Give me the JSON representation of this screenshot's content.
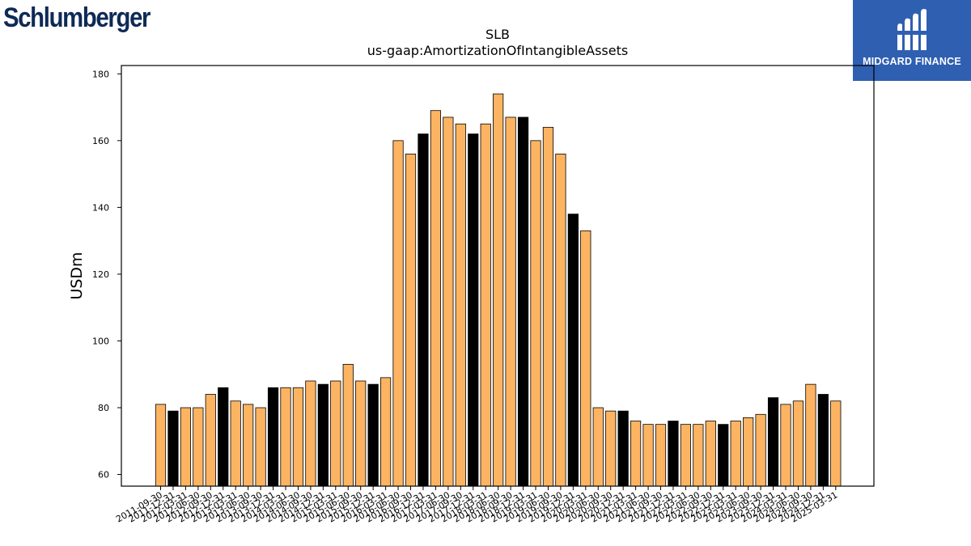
{
  "logos": {
    "left_text": "Schlumberger",
    "right_text": "MIDGARD FINANCE"
  },
  "colors": {
    "bar_orange": "#fdb462",
    "bar_black": "#000000",
    "logo_blue": "#2f5fb1",
    "logo_text_dark": "#0e2a56"
  },
  "chart_data": {
    "type": "bar",
    "title": "SLB",
    "subtitle": "us-gaap:AmortizationOfIntangibleAssets",
    "xlabel": "",
    "ylabel": "USDm",
    "ylim": [
      56.5,
      182.5
    ],
    "yticks": [
      60,
      80,
      100,
      120,
      140,
      160,
      180
    ],
    "grid": false,
    "categories": [
      "2011-09-30",
      "2011-12-31",
      "2012-03-31",
      "2012-06-30",
      "2012-09-30",
      "2012-12-31",
      "2013-03-31",
      "2013-06-30",
      "2013-09-30",
      "2013-12-31",
      "2014-03-31",
      "2014-06-30",
      "2014-09-30",
      "2014-12-31",
      "2015-03-31",
      "2015-06-30",
      "2015-09-30",
      "2015-12-31",
      "2016-03-31",
      "2016-06-30",
      "2016-09-30",
      "2016-12-31",
      "2017-03-31",
      "2017-06-30",
      "2017-09-30",
      "2017-12-31",
      "2018-03-31",
      "2018-06-30",
      "2018-09-30",
      "2018-12-31",
      "2019-03-31",
      "2019-06-30",
      "2019-09-30",
      "2019-12-31",
      "2020-03-31",
      "2020-06-30",
      "2020-09-30",
      "2020-12-31",
      "2021-03-31",
      "2021-06-30",
      "2021-09-30",
      "2021-12-31",
      "2022-03-31",
      "2022-06-30",
      "2022-09-30",
      "2022-12-31",
      "2023-03-31",
      "2023-06-30",
      "2023-09-30",
      "2023-12-31",
      "2024-03-31",
      "2024-06-30",
      "2024-09-30",
      "2024-12-31",
      "2025-03-31"
    ],
    "values": [
      81,
      79,
      80,
      80,
      84,
      86,
      82,
      81,
      80,
      86,
      86,
      86,
      88,
      87,
      88,
      93,
      88,
      87,
      89,
      160,
      156,
      162,
      169,
      167,
      165,
      162,
      165,
      174,
      167,
      167,
      160,
      164,
      156,
      138,
      133,
      80,
      79,
      79,
      76,
      75,
      75,
      76,
      75,
      75,
      76,
      75,
      76,
      77,
      78,
      83,
      81,
      82,
      87,
      84,
      82
    ],
    "bar_colors": [
      "orange",
      "black",
      "orange",
      "orange",
      "orange",
      "black",
      "orange",
      "orange",
      "orange",
      "black",
      "orange",
      "orange",
      "orange",
      "black",
      "orange",
      "orange",
      "orange",
      "black",
      "orange",
      "orange",
      "orange",
      "black",
      "orange",
      "orange",
      "orange",
      "black",
      "orange",
      "orange",
      "orange",
      "black",
      "orange",
      "orange",
      "orange",
      "black",
      "orange",
      "orange",
      "orange",
      "black",
      "orange",
      "orange",
      "orange",
      "black",
      "orange",
      "orange",
      "orange",
      "black",
      "orange",
      "orange",
      "orange",
      "black",
      "orange",
      "orange",
      "orange",
      "black",
      "orange"
    ]
  }
}
